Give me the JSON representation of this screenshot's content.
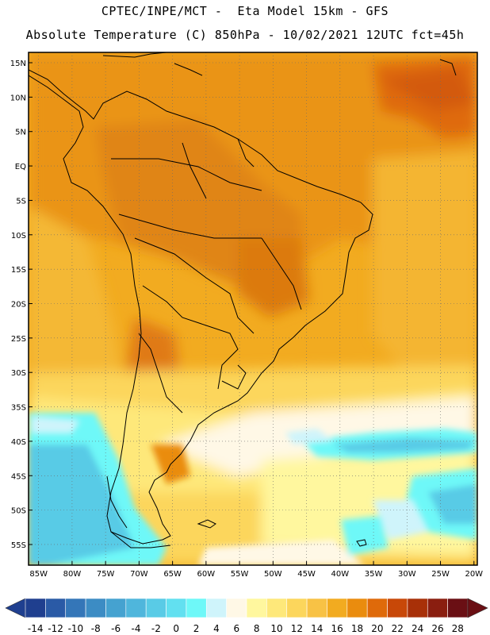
{
  "header": {
    "line1": "CPTEC/INPE/MCT -  Eta Model 15km - GFS",
    "line2": "Absolute Temperature (C) 850hPa - 10/02/2021 12UTC fct=45h"
  },
  "map": {
    "lat_labels": [
      "15N",
      "10N",
      "5N",
      "EQ",
      "5S",
      "10S",
      "15S",
      "20S",
      "25S",
      "30S",
      "35S",
      "40S",
      "45S",
      "50S",
      "55S"
    ],
    "lon_labels": [
      "85W",
      "80W",
      "75W",
      "70W",
      "65W",
      "60W",
      "55W",
      "50W",
      "45W",
      "40W",
      "35W",
      "30W",
      "25W",
      "20W"
    ]
  },
  "colorbar": {
    "labels": [
      "-14",
      "-12",
      "-10",
      "-8",
      "-6",
      "-4",
      "-2",
      "0",
      "2",
      "4",
      "6",
      "8",
      "10",
      "12",
      "14",
      "16",
      "18",
      "20",
      "22",
      "24",
      "26",
      "28"
    ],
    "colors": [
      "#1f3f8f",
      "#2a5aa6",
      "#3476b8",
      "#3c8cc4",
      "#45a2d0",
      "#4fb6dc",
      "#59cbe6",
      "#62e0f0",
      "#6ef8f8",
      "#cff4fb",
      "#fff8e6",
      "#fff79e",
      "#fee87a",
      "#fcd65c",
      "#f8c245",
      "#f2ab20",
      "#ea8c0e",
      "#df6a0a",
      "#c84808",
      "#a83008",
      "#8a1e10",
      "#6a0f14"
    ]
  }
}
